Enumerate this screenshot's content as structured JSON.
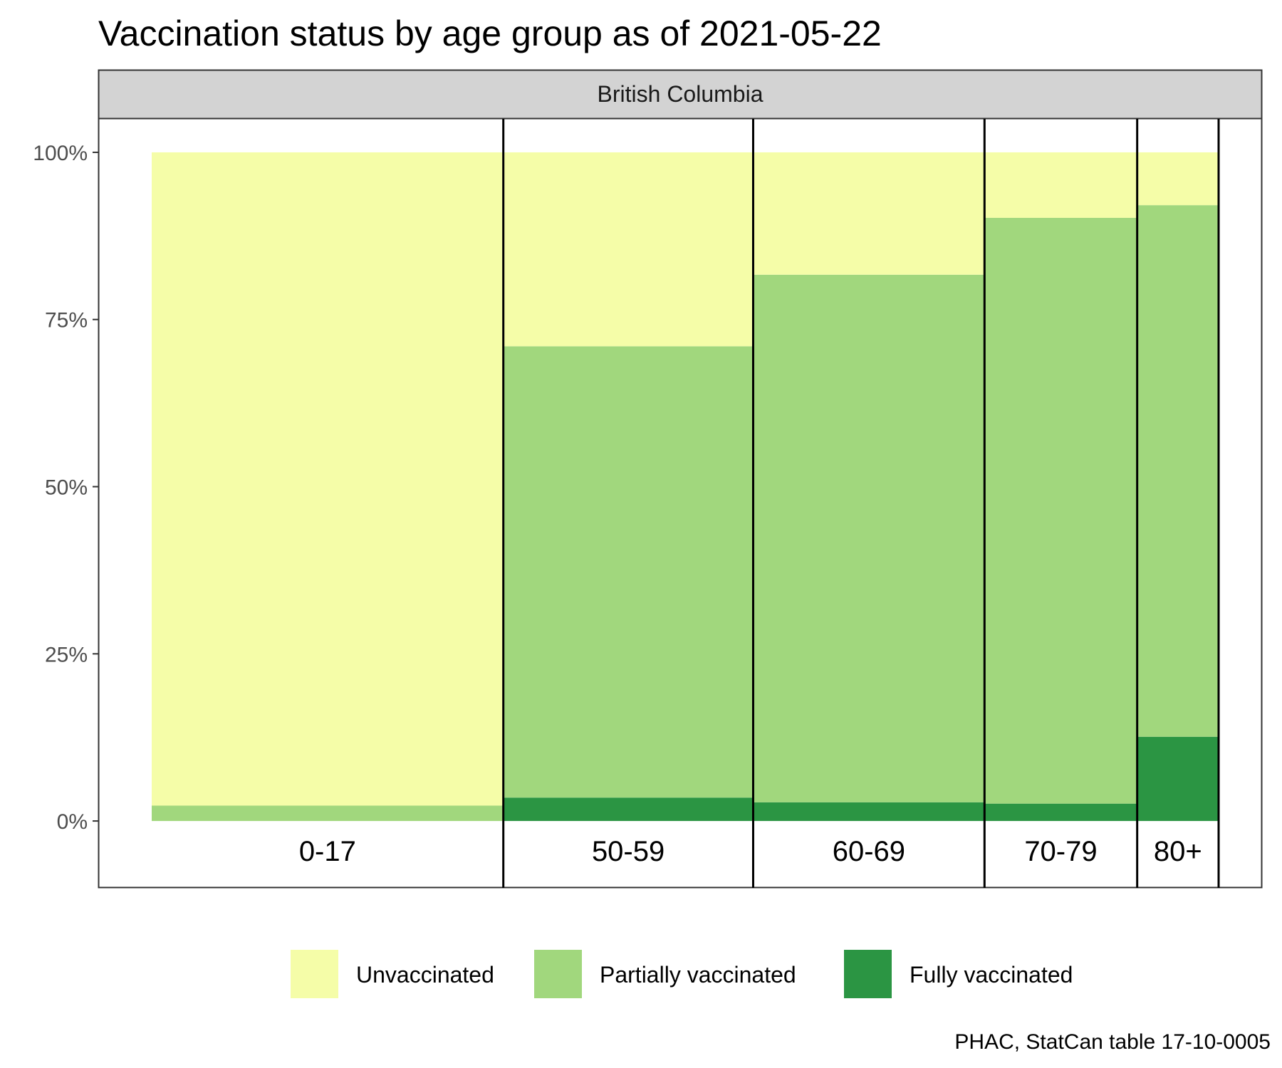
{
  "chart_data": {
    "type": "bar",
    "title": "Vaccination status by age group as of 2021-05-22",
    "facet": "British Columbia",
    "caption": "PHAC, StatCan table 17-10-0005",
    "y_tick_labels": [
      "0%",
      "25%",
      "50%",
      "75%",
      "100%"
    ],
    "y_ticks": [
      0,
      0.25,
      0.5,
      0.75,
      1.0
    ],
    "ylim": [
      -0.1,
      1.05
    ],
    "categories": [
      "0-17",
      "50-59",
      "60-69",
      "70-79",
      "80+"
    ],
    "category_population_share": [
      0.38,
      0.27,
      0.25,
      0.165,
      0.088
    ],
    "series": [
      {
        "name": "Fully vaccinated",
        "color": "#2b9543",
        "values": [
          0.0,
          0.035,
          0.028,
          0.026,
          0.126
        ]
      },
      {
        "name": "Partially vaccinated",
        "color": "#a1d77d",
        "values": [
          0.023,
          0.675,
          0.789,
          0.876,
          0.795
        ]
      },
      {
        "name": "Unvaccinated",
        "color": "#f5fda8",
        "values": [
          0.977,
          0.29,
          0.183,
          0.098,
          0.079
        ]
      }
    ],
    "legend": {
      "position": "bottom",
      "items": [
        {
          "label": "Unvaccinated",
          "color": "#f5fda8"
        },
        {
          "label": "Partially vaccinated",
          "color": "#a1d77d"
        },
        {
          "label": "Fully vaccinated",
          "color": "#2b9543"
        }
      ]
    },
    "grid": false
  }
}
